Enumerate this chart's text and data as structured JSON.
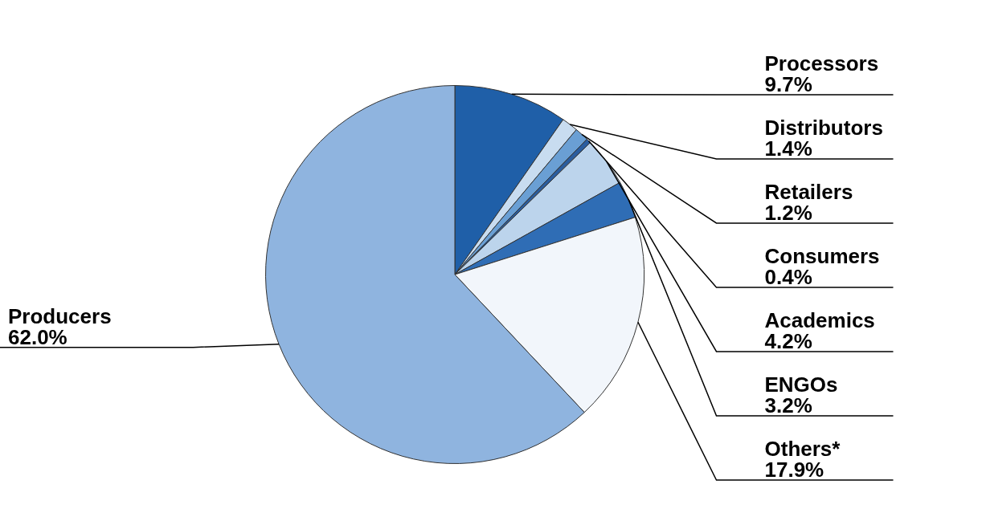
{
  "chart_data": {
    "type": "pie",
    "categories": [
      "Processors",
      "Distributors",
      "Retailers",
      "Consumers",
      "Academics",
      "ENGOs",
      "Others*",
      "Producers"
    ],
    "values": [
      9.7,
      1.4,
      1.2,
      0.4,
      4.2,
      3.2,
      17.9,
      62.0
    ],
    "value_labels": [
      "9.7%",
      "1.4%",
      "1.2%",
      "0.4%",
      "4.2%",
      "3.2%",
      "17.9%",
      "62.0%"
    ],
    "colors": [
      "#1f5fa8",
      "#c8dcf0",
      "#6a9fd4",
      "#2a5d9f",
      "#bcd4ec",
      "#2f6db5",
      "#f2f6fb",
      "#8fb4df"
    ],
    "legend": false
  }
}
